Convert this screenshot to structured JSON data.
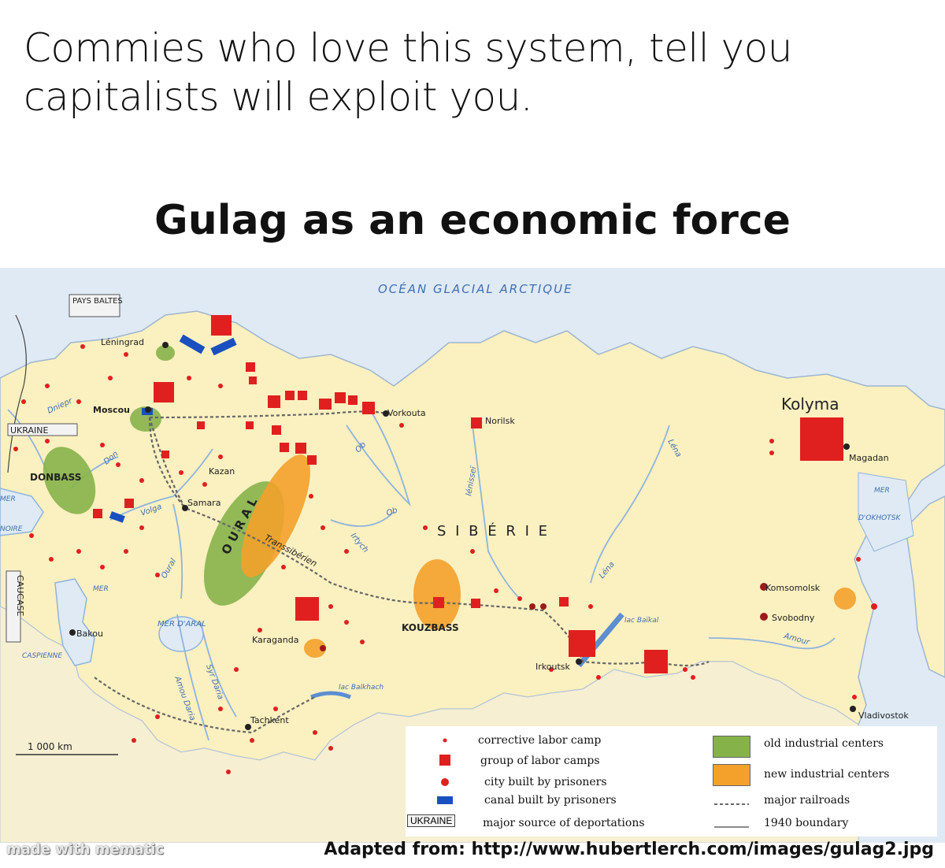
{
  "caption": "Commies who love this system, tell you capitalists will exploit you.",
  "map_title": "Gulag as an economic force",
  "colors": {
    "sea": "#dfeaf5",
    "land": "#fbf0c0",
    "river": "#8fb4dd",
    "camp": "#e0201f",
    "city": "#222222",
    "canal": "#1a4fc0",
    "old_industrial": "#86b24a",
    "new_industrial": "#f3a12b"
  },
  "map": {
    "ocean_label": "OCÉAN GLACIAL ARCTIQUE",
    "siberia_label": "S I B É R I E",
    "ural_label": "O U R A L",
    "scale_label": "1 000 km",
    "regions": {
      "baltics": "PAYS BALTES",
      "ukraine": "UKRAINE",
      "donbass": "DONBASS",
      "caucase": "CAUCASE",
      "kouzbass": "KOUZBASS"
    },
    "seas": {
      "mer_noire_1": "MER",
      "mer_noire_2": "NOIRE",
      "caspienne_1": "MER",
      "caspienne_2": "CASPIENNE",
      "aral": "MER D'ARAL",
      "okhotsk_1": "MER",
      "okhotsk_2": "D'OKHOTSK"
    },
    "rivers": {
      "dniepr": "Dniepr",
      "don": "Don",
      "volga": "Volga",
      "oural": "Oural",
      "ob1": "Ob",
      "ob2": "Ob",
      "irtych": "Irtych",
      "ienissei": "Iénisseï",
      "lena1": "Léna",
      "lena2": "Léna",
      "amou_daria": "Amou Daria",
      "syr_daria": "Syr Daria",
      "amour": "Amour",
      "transsiberien": "Transsibérien",
      "balkhach": "lac Balkhach",
      "baikal": "lac Baïkal"
    },
    "cities": {
      "leningrad": "Léningrad",
      "moscou": "Moscou",
      "kazan": "Kazan",
      "samara": "Samara",
      "vorkouta": "Vorkouta",
      "norilsk": "Norilsk",
      "kolyma": "Kolyma",
      "magadan": "Magadan",
      "komsomolsk": "Komsomolsk",
      "svobodny": "Svobodny",
      "vladivostok": "Vladivostok",
      "irkoutsk": "Irkoutsk",
      "karaganda": "Karaganda",
      "bakou": "Bakou",
      "tachkent": "Tachkent"
    }
  },
  "legend": {
    "corrective": "corrective labor camp",
    "group": "group of labor camps",
    "city": "city built by prisoners",
    "canal": "canal built by prisoners",
    "ukraine_tag": "UKRAINE",
    "deportation": "major source of deportations",
    "old": "old industrial centers",
    "new": "new industrial centers",
    "railroads": "major railroads",
    "boundary": "1940 boundary"
  },
  "watermark": "made with mematic",
  "source": "Adapted from: http://www.hubertlerch.com/images/gulag2.jpg"
}
